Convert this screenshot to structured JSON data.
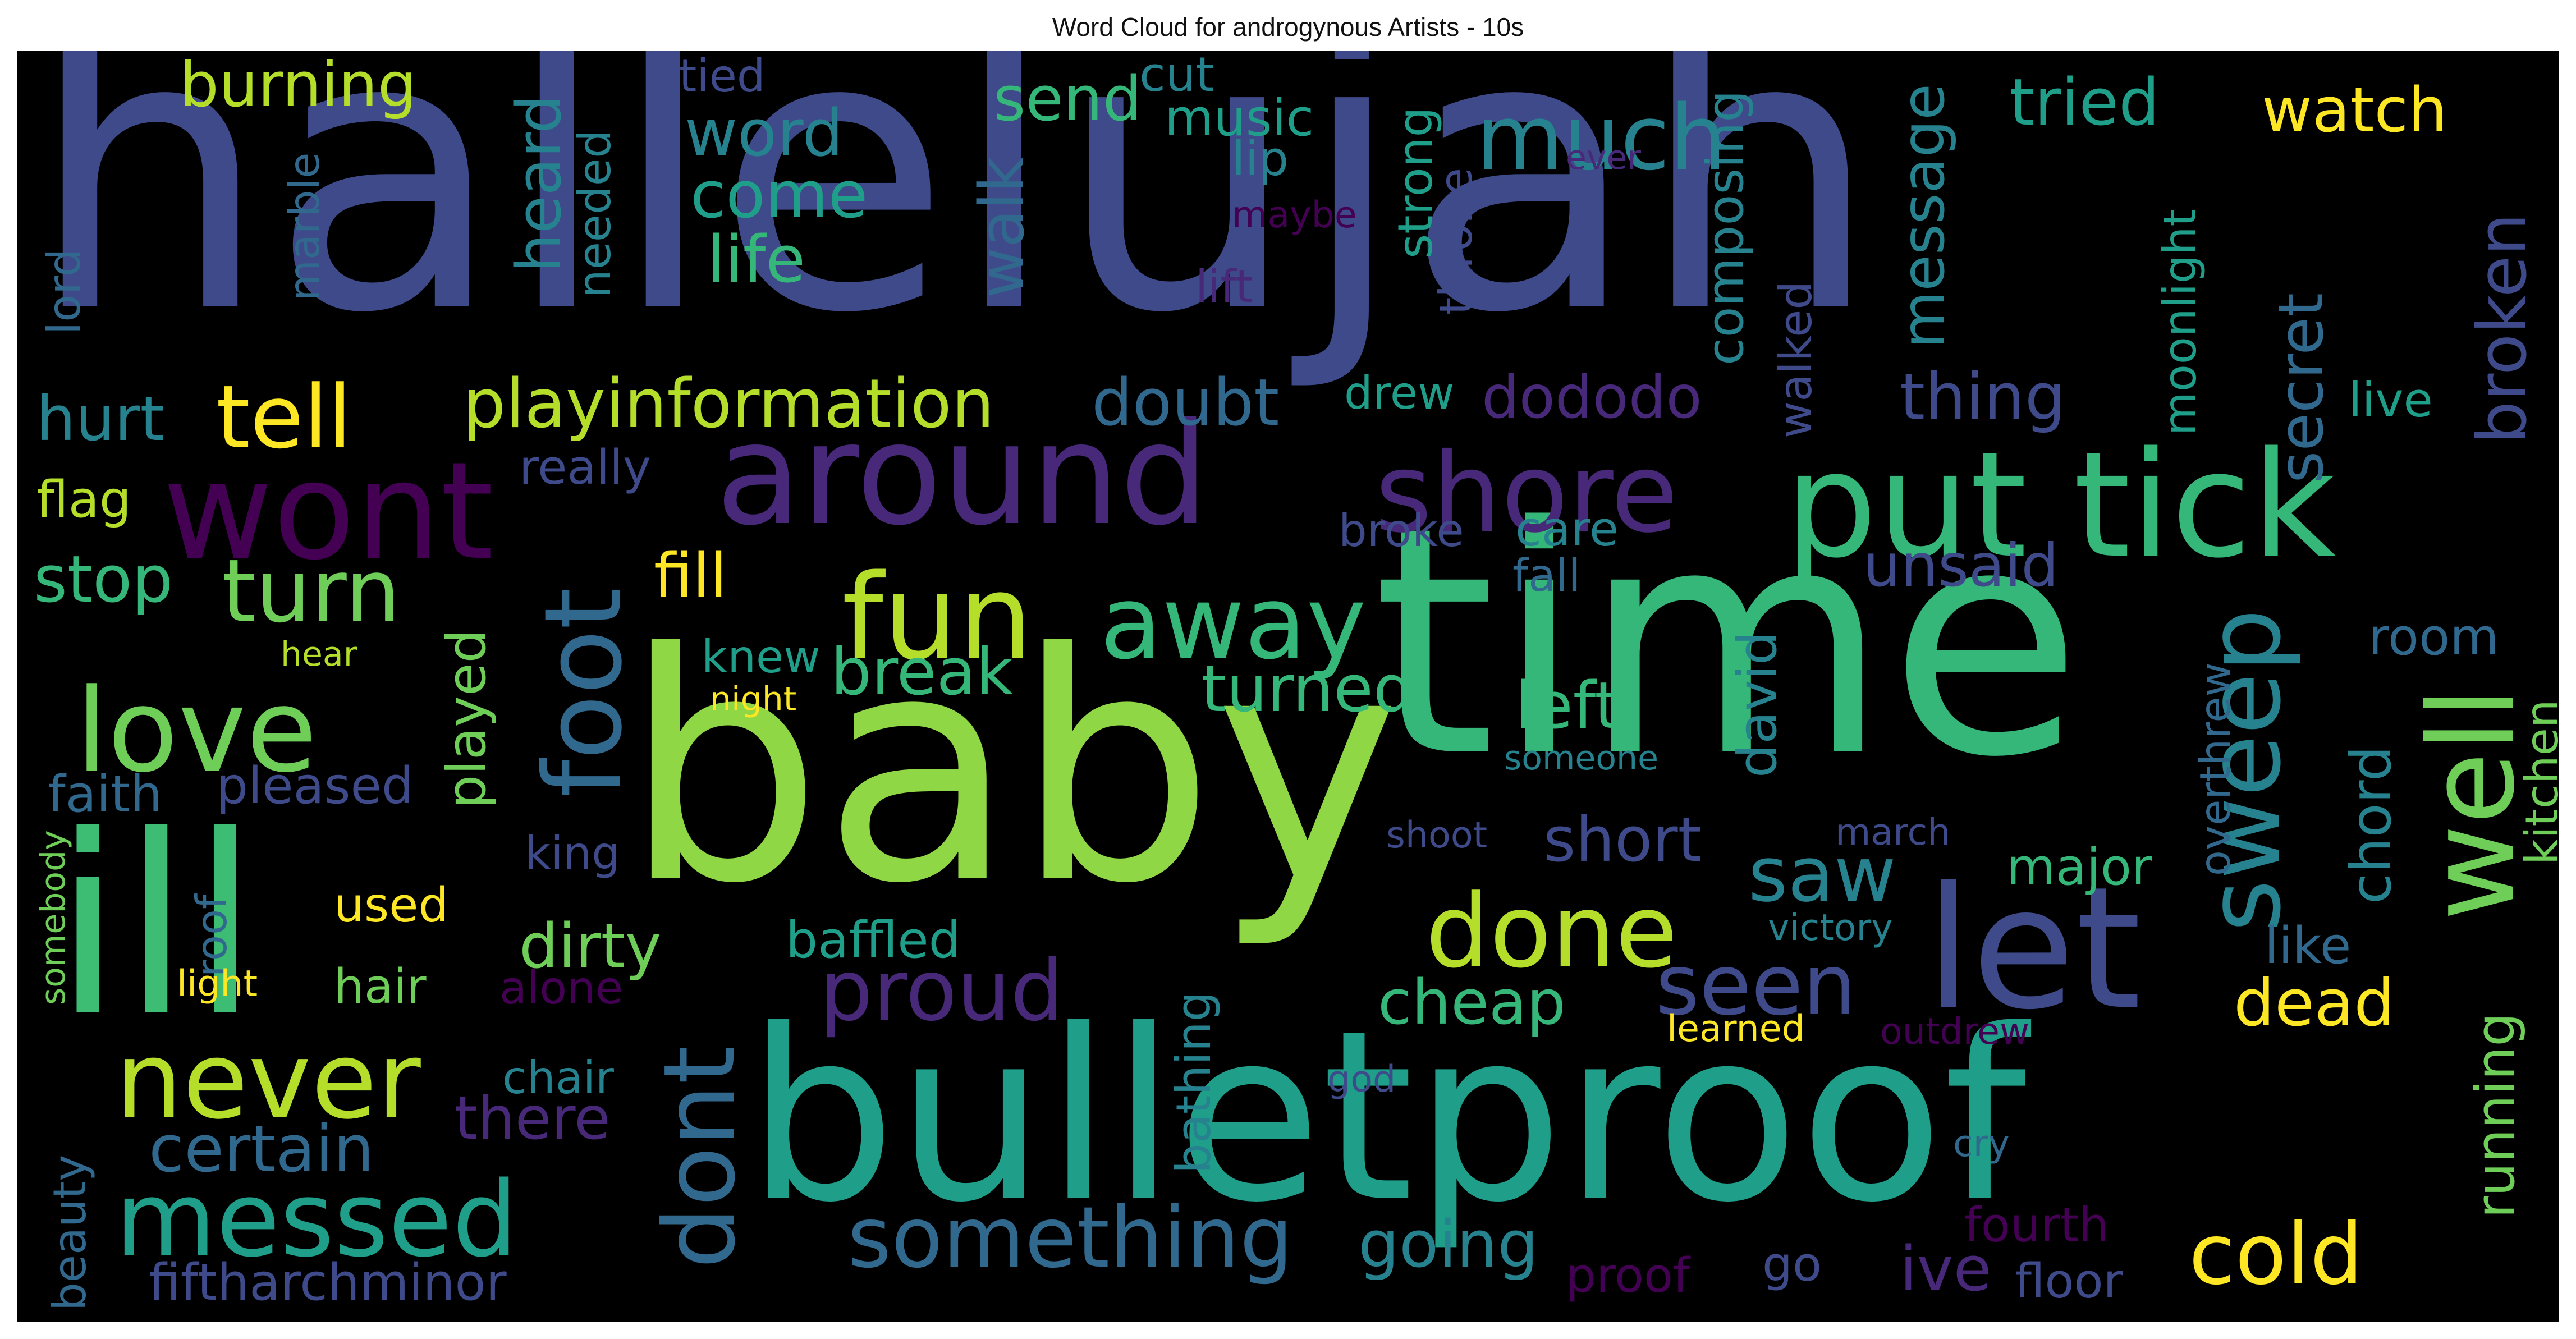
{
  "title": "Word Cloud for androgynous Artists - 10s",
  "palette": {
    "background": "#000000",
    "dark_purple": "#440154",
    "purple": "#482878",
    "indigo": "#3e4a89",
    "blue": "#31688e",
    "teal": "#26828e",
    "green_teal": "#1f9e89",
    "green": "#35b779",
    "light_green": "#6ece58",
    "lime": "#b5de2b",
    "yellow": "#fde725"
  },
  "words": {
    "hallelujah": "hallelujah",
    "time": "time",
    "baby": "baby",
    "ill": "ill",
    "bulletproof": "bulletproof",
    "around": "around",
    "wont": "wont",
    "put_tick": "put tick",
    "let": "let",
    "sweep": "sweep",
    "well": "well",
    "shore": "shore",
    "fun": "fun",
    "away": "away",
    "foot": "foot",
    "love": "love",
    "never": "never",
    "messed": "messed",
    "dont": "dont",
    "done": "done",
    "much": "much",
    "tell": "tell",
    "turn": "turn",
    "burning": "burning",
    "word": "word",
    "come": "come",
    "life": "life",
    "send": "send",
    "music": "music",
    "lip": "lip",
    "cut": "cut",
    "tied": "tied",
    "tried": "tried",
    "watch": "watch",
    "broken": "broken",
    "message": "message",
    "composing": "composing",
    "walked": "walked",
    "moonlight": "moonlight",
    "secret": "secret",
    "thing": "thing",
    "live": "live",
    "heard": "heard",
    "needed": "needed",
    "marble": "marble",
    "lord": "lord",
    "walk": "walk",
    "strong": "strong",
    "throne": "throne",
    "maybe": "maybe",
    "ever": "ever",
    "lift": "lift",
    "hurt": "hurt",
    "playinformation": "playinformation",
    "doubt": "doubt",
    "drew": "drew",
    "dododo": "dododo",
    "flag": "flag",
    "really": "really",
    "stop": "stop",
    "fill": "fill",
    "broke": "broke",
    "care": "care",
    "fall": "fall",
    "unsaid": "unsaid",
    "played": "played",
    "knew": "knew",
    "break": "break",
    "turned": "turned",
    "left": "left",
    "david": "david",
    "chord": "chord",
    "room": "room",
    "kitchen": "kitchen",
    "overthrew": "overthrew",
    "hear": "hear",
    "night": "night",
    "someone": "someone",
    "faith": "faith",
    "pleased": "pleased",
    "short": "short",
    "saw": "saw",
    "king": "king",
    "shoot": "shoot",
    "march": "march",
    "major": "major",
    "roof": "roof",
    "used": "used",
    "dirty": "dirty",
    "baffled": "baffled",
    "victory": "victory",
    "like": "like",
    "somebody": "somebody",
    "light": "light",
    "hair": "hair",
    "alone": "alone",
    "proud": "proud",
    "seen": "seen",
    "cheap": "cheap",
    "dead": "dead",
    "learned": "learned",
    "outdrew": "outdrew",
    "chair": "chair",
    "there": "there",
    "god": "god",
    "running": "running",
    "certain": "certain",
    "beauty": "beauty",
    "bathing": "bathing",
    "cry": "cry",
    "something": "something",
    "going": "going",
    "cold": "cold",
    "fourth": "fourth",
    "fiftharchminor": "fiftharchminor",
    "proof": "proof",
    "go": "go",
    "ive": "ive",
    "floor": "floor"
  }
}
